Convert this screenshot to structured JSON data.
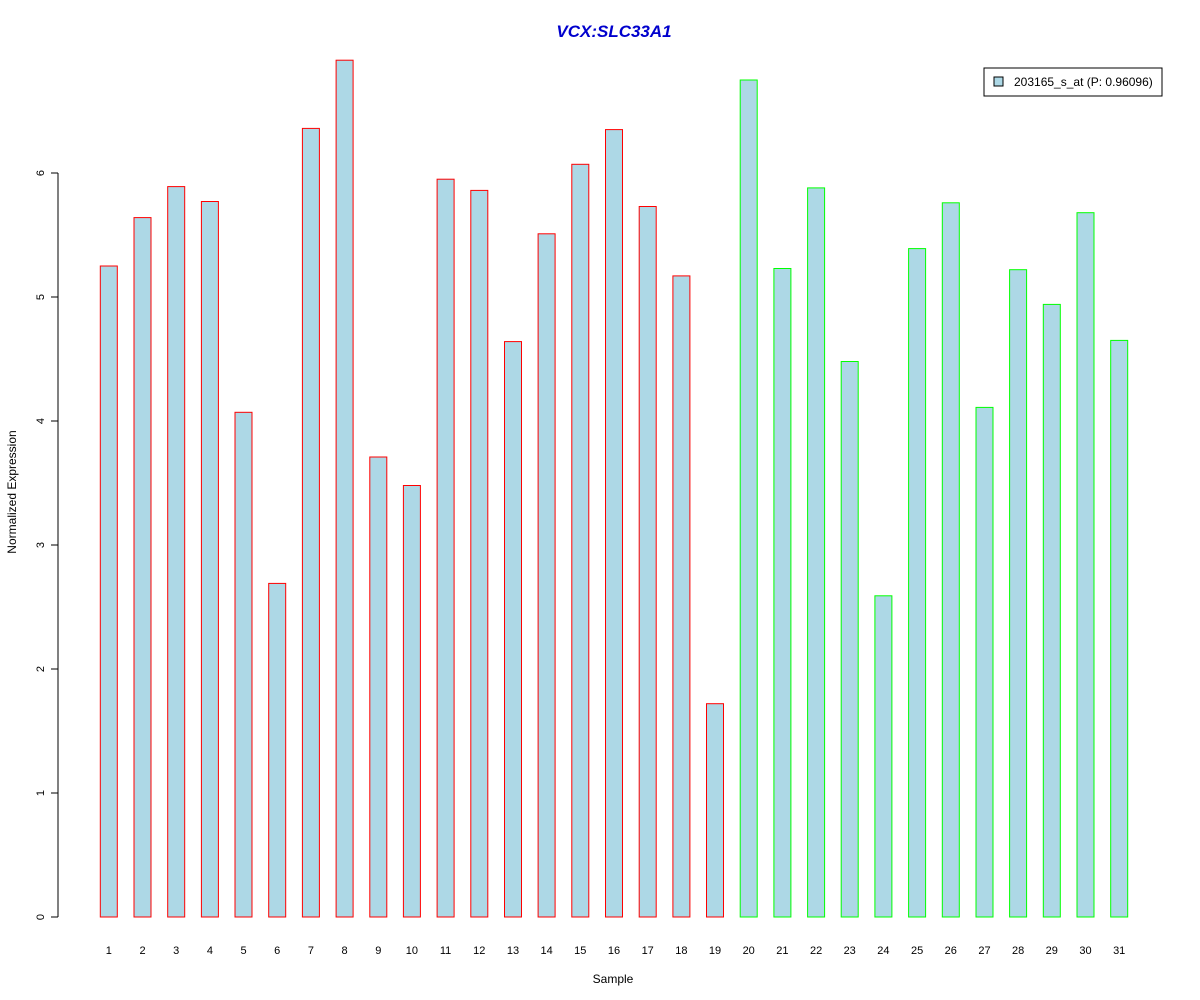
{
  "chart_data": {
    "type": "bar",
    "title": "VCX:SLC33A1",
    "xlabel": "Sample",
    "ylabel": "Normalized Expression",
    "ylim": [
      0,
      7
    ],
    "yticks": [
      "0",
      "1",
      "2",
      "3",
      "4",
      "5",
      "6"
    ],
    "categories": [
      "1",
      "2",
      "3",
      "4",
      "5",
      "6",
      "7",
      "8",
      "9",
      "10",
      "11",
      "12",
      "13",
      "14",
      "15",
      "16",
      "17",
      "18",
      "19",
      "20",
      "21",
      "22",
      "23",
      "24",
      "25",
      "26",
      "27",
      "28",
      "29",
      "30",
      "31"
    ],
    "values": [
      5.25,
      5.64,
      5.89,
      5.77,
      4.07,
      2.69,
      6.36,
      6.91,
      3.71,
      3.48,
      5.95,
      5.86,
      4.64,
      5.51,
      6.07,
      6.35,
      5.73,
      5.17,
      1.72,
      6.75,
      5.23,
      5.88,
      4.48,
      2.59,
      5.39,
      5.76,
      4.11,
      5.22,
      4.94,
      5.68,
      4.65
    ],
    "groups": [
      1,
      1,
      1,
      1,
      1,
      1,
      1,
      1,
      1,
      1,
      1,
      1,
      1,
      1,
      1,
      1,
      1,
      1,
      1,
      2,
      2,
      2,
      2,
      2,
      2,
      2,
      2,
      2,
      2,
      2,
      2
    ],
    "series": [
      {
        "name": "203165_s_at (P: 0.96096)"
      }
    ],
    "legend_position": "top-right",
    "grid": false,
    "colors": {
      "bar_fill": "#add8e6",
      "group1_border": "#ff0000",
      "group2_border": "#00ff00",
      "title": "#0000cd",
      "axis": "#000000"
    }
  }
}
